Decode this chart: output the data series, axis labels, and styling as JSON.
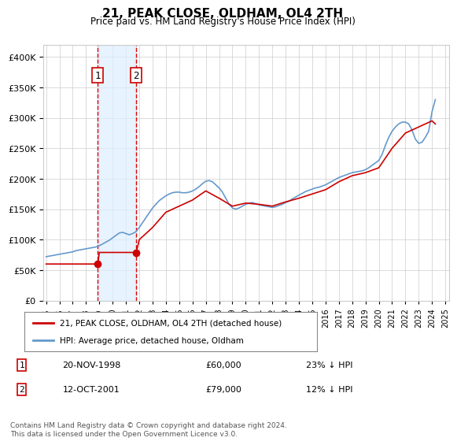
{
  "title": "21, PEAK CLOSE, OLDHAM, OL4 2TH",
  "subtitle": "Price paid vs. HM Land Registry's House Price Index (HPI)",
  "legend_line1": "21, PEAK CLOSE, OLDHAM, OL4 2TH (detached house)",
  "legend_line2": "HPI: Average price, detached house, Oldham",
  "footnote": "Contains HM Land Registry data © Crown copyright and database right 2024.\nThis data is licensed under the Open Government Licence v3.0.",
  "transaction1_label": "1",
  "transaction1_date": "20-NOV-1998",
  "transaction1_price": "£60,000",
  "transaction1_hpi": "23% ↓ HPI",
  "transaction1_year": 1998.88,
  "transaction1_value": 60000,
  "transaction2_label": "2",
  "transaction2_date": "12-OCT-2001",
  "transaction2_price": "£79,000",
  "transaction2_hpi": "12% ↓ HPI",
  "transaction2_year": 2001.78,
  "transaction2_value": 79000,
  "ylim": [
    0,
    420000
  ],
  "yticks": [
    0,
    50000,
    100000,
    150000,
    200000,
    250000,
    300000,
    350000,
    400000
  ],
  "line_color_red": "#cc0000",
  "line_color_blue": "#6699cc",
  "marker_color_red": "#cc0000",
  "vline_color": "#dd0000",
  "band_color": "#ddeeff",
  "box_color": "#cc0000",
  "grid_color": "#cccccc",
  "bg_color": "#ffffff",
  "hpi_years": [
    1995,
    1995.25,
    1995.5,
    1995.75,
    1996,
    1996.25,
    1996.5,
    1996.75,
    1997,
    1997.25,
    1997.5,
    1997.75,
    1998,
    1998.25,
    1998.5,
    1998.75,
    1999,
    1999.25,
    1999.5,
    1999.75,
    2000,
    2000.25,
    2000.5,
    2000.75,
    2001,
    2001.25,
    2001.5,
    2001.75,
    2002,
    2002.25,
    2002.5,
    2002.75,
    2003,
    2003.25,
    2003.5,
    2003.75,
    2004,
    2004.25,
    2004.5,
    2004.75,
    2005,
    2005.25,
    2005.5,
    2005.75,
    2006,
    2006.25,
    2006.5,
    2006.75,
    2007,
    2007.25,
    2007.5,
    2007.75,
    2008,
    2008.25,
    2008.5,
    2008.75,
    2009,
    2009.25,
    2009.5,
    2009.75,
    2010,
    2010.25,
    2010.5,
    2010.75,
    2011,
    2011.25,
    2011.5,
    2011.75,
    2012,
    2012.25,
    2012.5,
    2012.75,
    2013,
    2013.25,
    2013.5,
    2013.75,
    2014,
    2014.25,
    2014.5,
    2014.75,
    2015,
    2015.25,
    2015.5,
    2015.75,
    2016,
    2016.25,
    2016.5,
    2016.75,
    2017,
    2017.25,
    2017.5,
    2017.75,
    2018,
    2018.25,
    2018.5,
    2018.75,
    2019,
    2019.25,
    2019.5,
    2019.75,
    2020,
    2020.25,
    2020.5,
    2020.75,
    2021,
    2021.25,
    2021.5,
    2021.75,
    2022,
    2022.25,
    2022.5,
    2022.75,
    2023,
    2023.25,
    2023.5,
    2023.75,
    2024,
    2024.25
  ],
  "hpi_values": [
    72000,
    73000,
    74000,
    75000,
    76000,
    77000,
    78000,
    79000,
    80000,
    82000,
    83000,
    84000,
    85000,
    86000,
    87000,
    88000,
    90000,
    93000,
    96000,
    99000,
    103000,
    107000,
    111000,
    112000,
    110000,
    108000,
    110000,
    113000,
    120000,
    128000,
    136000,
    144000,
    152000,
    158000,
    164000,
    168000,
    172000,
    175000,
    177000,
    178000,
    178000,
    177000,
    177000,
    178000,
    180000,
    183000,
    187000,
    192000,
    196000,
    197000,
    195000,
    190000,
    185000,
    178000,
    168000,
    158000,
    152000,
    150000,
    152000,
    155000,
    158000,
    160000,
    161000,
    159000,
    157000,
    156000,
    155000,
    154000,
    153000,
    154000,
    156000,
    158000,
    161000,
    163000,
    167000,
    170000,
    173000,
    176000,
    179000,
    181000,
    183000,
    185000,
    186000,
    188000,
    190000,
    193000,
    196000,
    199000,
    202000,
    204000,
    206000,
    208000,
    210000,
    211000,
    212000,
    213000,
    215000,
    218000,
    222000,
    226000,
    230000,
    240000,
    255000,
    268000,
    278000,
    285000,
    290000,
    293000,
    293000,
    290000,
    280000,
    265000,
    258000,
    260000,
    268000,
    278000,
    310000,
    330000
  ],
  "price_years": [
    1995,
    1996,
    1997,
    1998,
    1998.88,
    1999,
    2000,
    2001,
    2001.78,
    2002,
    2003,
    2004,
    2005,
    2006,
    2007,
    2008,
    2009,
    2010,
    2011,
    2012,
    2013,
    2014,
    2015,
    2016,
    2017,
    2018,
    2019,
    2020,
    2021,
    2022,
    2023,
    2024,
    2024.25
  ],
  "price_values": [
    60000,
    60000,
    60000,
    60000,
    60000,
    79000,
    79000,
    79000,
    79000,
    100000,
    120000,
    145000,
    155000,
    165000,
    180000,
    168000,
    155000,
    160000,
    158000,
    155000,
    162000,
    168000,
    175000,
    182000,
    195000,
    205000,
    210000,
    218000,
    250000,
    275000,
    285000,
    295000,
    290000
  ],
  "xtick_years": [
    1995,
    1996,
    1997,
    1998,
    1999,
    2000,
    2001,
    2002,
    2003,
    2004,
    2005,
    2006,
    2007,
    2008,
    2009,
    2010,
    2011,
    2012,
    2013,
    2014,
    2015,
    2016,
    2017,
    2018,
    2019,
    2020,
    2021,
    2022,
    2023,
    2024,
    2025
  ]
}
